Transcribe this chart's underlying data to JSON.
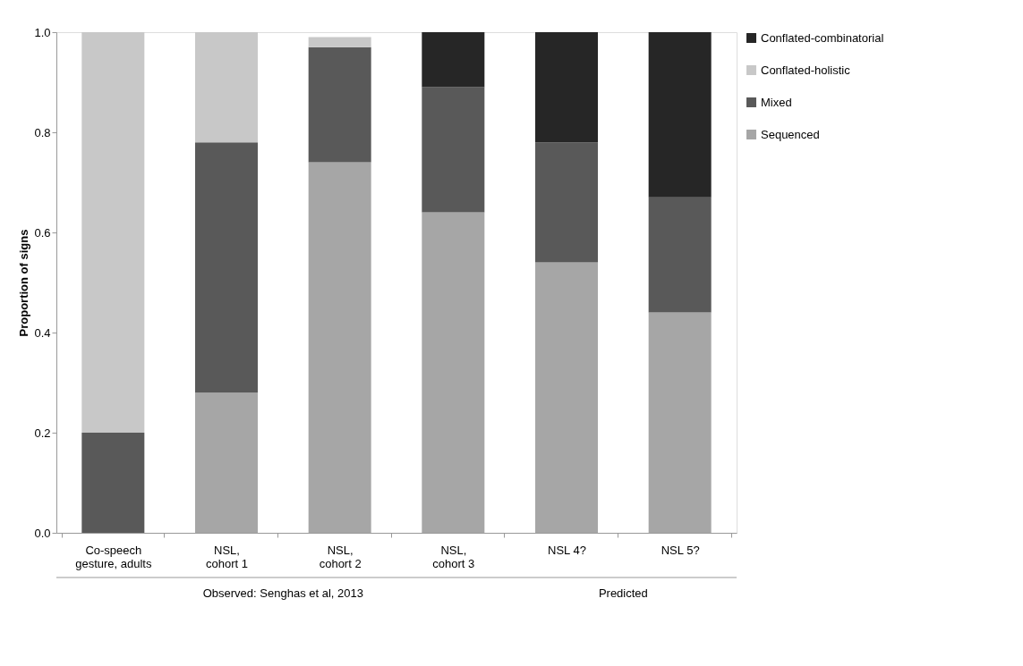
{
  "chart_data": {
    "type": "bar",
    "stacked": true,
    "ylabel": "Proportion of signs",
    "categories": [
      "Co-speech gesture, adults",
      "NSL, cohort 1",
      "NSL, cohort 2",
      "NSL, cohort 3",
      "NSL 4?",
      "NSL 5?"
    ],
    "series": [
      {
        "name": "Sequenced",
        "color": "#a6a6a6",
        "values": [
          0,
          0.28,
          0.74,
          0.64,
          0.54,
          0.44
        ]
      },
      {
        "name": "Mixed",
        "color": "#595959",
        "values": [
          0.2,
          0.5,
          0.23,
          0.25,
          0.24,
          0.23
        ]
      },
      {
        "name": "Conflated-holistic",
        "color": "#c8c8c8",
        "values": [
          0.8,
          0.22,
          0.02,
          0,
          0,
          0
        ]
      },
      {
        "name": "Conflated-combinatorial",
        "color": "#262626",
        "values": [
          0,
          0,
          0,
          0.11,
          0.22,
          0.33
        ]
      }
    ],
    "ylim": [
      0,
      1
    ],
    "yticks": [
      {
        "value": 0,
        "label": "0.0"
      },
      {
        "value": 0.2,
        "label": "0.2"
      },
      {
        "value": 0.4,
        "label": "0.4"
      },
      {
        "value": 0.6,
        "label": "0.6"
      },
      {
        "value": 0.8,
        "label": "0.8"
      },
      {
        "value": 1,
        "label": "1.0"
      }
    ],
    "annotations": [
      "Observed: Senghas et al, 2013",
      "Predicted"
    ],
    "grid": false,
    "legend": "right"
  }
}
